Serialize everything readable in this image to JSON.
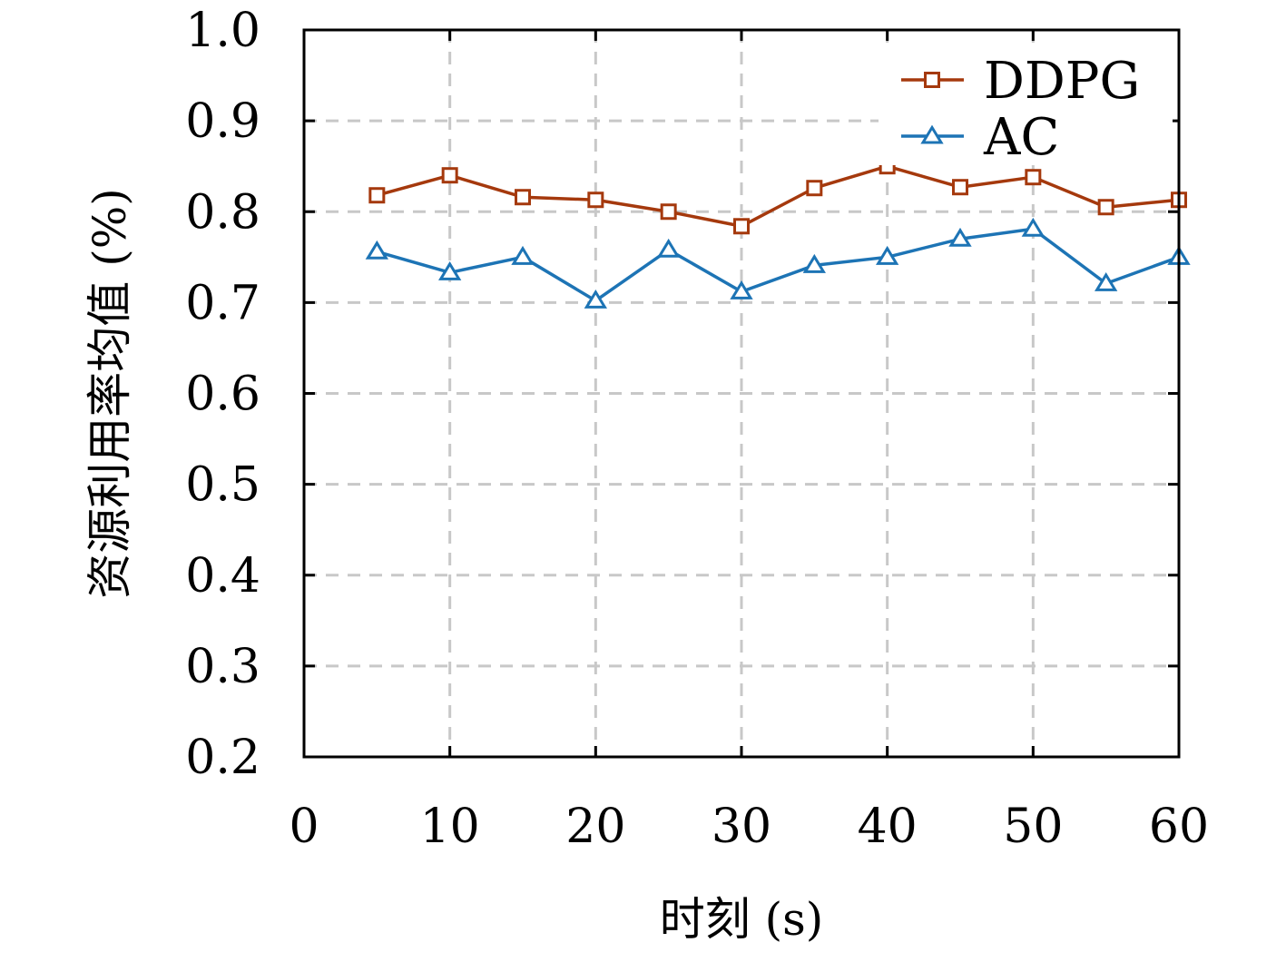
{
  "chart_data": {
    "type": "line",
    "title": "",
    "xlabel": "时刻 (s)",
    "ylabel": "资源利用率均值 (%)",
    "xlim": [
      0,
      60
    ],
    "ylim": [
      0.2,
      1.0
    ],
    "xticks": [
      0,
      10,
      20,
      30,
      40,
      50,
      60
    ],
    "xtick_labels": [
      "0",
      "10",
      "20",
      "30",
      "40",
      "50",
      "60"
    ],
    "yticks": [
      0.2,
      0.3,
      0.4,
      0.5,
      0.6,
      0.7,
      0.8,
      0.9,
      1.0
    ],
    "ytick_labels": [
      "0.2",
      "0.3",
      "0.4",
      "0.5",
      "0.6",
      "0.7",
      "0.8",
      "0.9",
      "1.0"
    ],
    "grid": true,
    "legend_position": "top-right",
    "x": [
      5,
      10,
      15,
      20,
      25,
      30,
      35,
      40,
      45,
      50,
      55,
      60
    ],
    "series": [
      {
        "name": "DDPG",
        "color": "#a5390d",
        "marker": "square",
        "values": [
          0.818,
          0.84,
          0.816,
          0.813,
          0.8,
          0.784,
          0.826,
          0.85,
          0.827,
          0.838,
          0.805,
          0.813
        ]
      },
      {
        "name": "AC",
        "color": "#1d74b5",
        "marker": "triangle",
        "values": [
          0.756,
          0.733,
          0.75,
          0.702,
          0.758,
          0.712,
          0.741,
          0.75,
          0.77,
          0.781,
          0.721,
          0.75
        ]
      }
    ]
  }
}
